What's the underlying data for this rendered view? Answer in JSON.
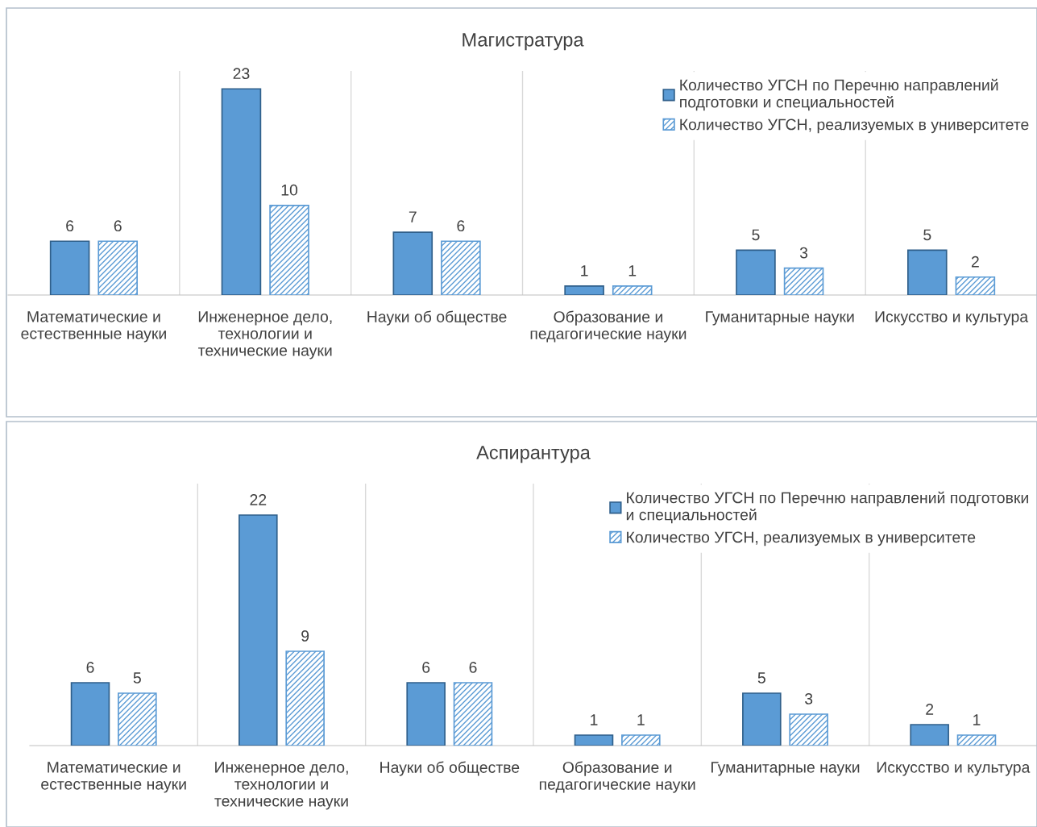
{
  "chart_data": [
    {
      "type": "bar",
      "title": "Магистратура",
      "categories": [
        "Математические и\nестественные науки",
        "Инженерное дело,\nтехнологии и\nтехнические науки",
        "Науки об обществе",
        "Образование и\nпедагогические науки",
        "Гуманитарные науки",
        "Искусство и культура"
      ],
      "series": [
        {
          "name": "Количество УГСН по Перечню направлений\nподготовки и специальностей",
          "color": "#5b9bd5",
          "values": [
            6,
            23,
            7,
            1,
            5,
            5
          ]
        },
        {
          "name": "Количество УГСН, реализуемых в университете",
          "color": "#5b9bd5",
          "values": [
            6,
            10,
            6,
            1,
            3,
            2
          ]
        }
      ],
      "ylim": [
        0,
        25
      ],
      "tick_labels": "x",
      "data_labels": true,
      "grid": "x",
      "legend": "top right"
    },
    {
      "type": "bar",
      "title": "Аспирантура",
      "categories": [
        "Математические и\nестественные науки",
        "Инженерное дело,\nтехнологии и\nтехнические науки",
        "Науки об обществе",
        "Образование и\nпедагогические науки",
        "Гуманитарные науки",
        "Искусство и культура"
      ],
      "series": [
        {
          "name": "Количество УГСН по Перечню направлений подготовки\nи специальностей",
          "color": "#5b9bd5",
          "values": [
            6,
            22,
            6,
            1,
            5,
            2
          ]
        },
        {
          "name": "Количество УГСН, реализуемых в университете",
          "color": "#5b9bd5",
          "values": [
            5,
            9,
            6,
            1,
            3,
            1
          ]
        }
      ],
      "ylim": [
        0,
        25
      ],
      "tick_labels": "x",
      "data_labels": true,
      "grid": "x",
      "legend": "top right"
    }
  ]
}
